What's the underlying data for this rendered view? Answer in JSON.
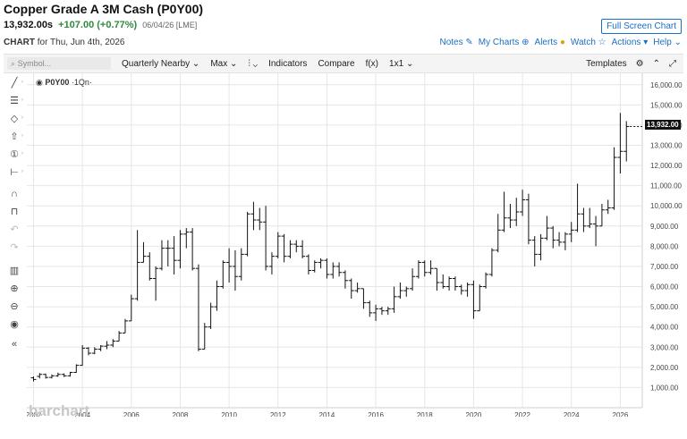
{
  "header": {
    "title": "Copper Grade A 3M Cash (P0Y00)",
    "last": "13,932.00s",
    "change": "+107.00 (+0.77%)",
    "meta": "06/04/26 [LME]",
    "fullscreen": "Full Screen Chart",
    "chart_label": "CHART",
    "chart_date": "for Thu, Jun 4th, 2026"
  },
  "top_links": {
    "notes": "Notes",
    "my_charts": "My Charts",
    "alerts": "Alerts",
    "watch": "Watch",
    "actions": "Actions",
    "help": "Help"
  },
  "toolbar": {
    "search_placeholder": "Symbol...",
    "period": "Quarterly Nearby",
    "range": "Max",
    "indicators": "Indicators",
    "compare": "Compare",
    "fx": "f(x)",
    "layout": "1x1",
    "templates": "Templates"
  },
  "symbol_label": {
    "symbol": "P0Y00",
    "interval": "·1Qn·"
  },
  "watermark": "barchart",
  "last_badge": "13,932.00",
  "colors": {
    "accent": "#1a6fc4",
    "up": "#2e8b3d",
    "bar": "#111111",
    "grid": "#e6e6e6"
  },
  "chart_data": {
    "type": "ohlc",
    "x_ticks": [
      "2002",
      "2004",
      "2006",
      "2008",
      "2010",
      "2012",
      "2014",
      "2016",
      "2018",
      "2020",
      "2022",
      "2024",
      "2026"
    ],
    "y_ticks": [
      "1,000.00",
      "2,000.00",
      "3,000.00",
      "4,000.00",
      "5,000.00",
      "6,000.00",
      "7,000.00",
      "8,000.00",
      "9,000.00",
      "10,000.00",
      "11,000.00",
      "12,000.00",
      "13,000.00",
      "14,000.00",
      "15,000.00",
      "16,000.00"
    ],
    "ylim": [
      0,
      16300
    ],
    "xlim": [
      2001.8,
      2026.9
    ],
    "bars": [
      [
        2002.0,
        1480,
        1550,
        1300,
        1400
      ],
      [
        2002.25,
        1550,
        1720,
        1450,
        1650
      ],
      [
        2002.5,
        1650,
        1690,
        1440,
        1500
      ],
      [
        2002.75,
        1500,
        1650,
        1450,
        1580
      ],
      [
        2003.0,
        1580,
        1740,
        1530,
        1650
      ],
      [
        2003.25,
        1650,
        1700,
        1520,
        1580
      ],
      [
        2003.5,
        1580,
        1780,
        1540,
        1750
      ],
      [
        2003.75,
        1750,
        2150,
        1730,
        2100
      ],
      [
        2004.0,
        2100,
        3100,
        2080,
        2950
      ],
      [
        2004.25,
        2950,
        3000,
        2600,
        2700
      ],
      [
        2004.5,
        2700,
        3000,
        2650,
        2900
      ],
      [
        2004.75,
        2900,
        3100,
        2800,
        3050
      ],
      [
        2005.0,
        3050,
        3300,
        2900,
        3100
      ],
      [
        2005.25,
        3100,
        3400,
        3000,
        3300
      ],
      [
        2005.5,
        3300,
        3800,
        3300,
        3700
      ],
      [
        2005.75,
        3700,
        4400,
        3700,
        4300
      ],
      [
        2006.0,
        4300,
        5600,
        4300,
        5400
      ],
      [
        2006.25,
        5400,
        8800,
        5300,
        7200
      ],
      [
        2006.5,
        7200,
        8200,
        7200,
        7500
      ],
      [
        2006.75,
        7500,
        7700,
        6300,
        6400
      ],
      [
        2007.0,
        6400,
        7000,
        5300,
        6900
      ],
      [
        2007.25,
        6900,
        8300,
        6800,
        7900
      ],
      [
        2007.5,
        7900,
        8300,
        7000,
        7900
      ],
      [
        2007.75,
        7900,
        8500,
        6600,
        7300
      ],
      [
        2008.0,
        7300,
        8800,
        6900,
        8600
      ],
      [
        2008.25,
        8600,
        8900,
        7900,
        8700
      ],
      [
        2008.5,
        8700,
        8900,
        6800,
        6900
      ],
      [
        2008.75,
        6900,
        7100,
        2800,
        2900
      ],
      [
        2009.0,
        2900,
        4200,
        2900,
        4000
      ],
      [
        2009.25,
        4000,
        5200,
        3900,
        5000
      ],
      [
        2009.5,
        5000,
        6300,
        4800,
        6000
      ],
      [
        2009.75,
        6000,
        7300,
        5900,
        7200
      ],
      [
        2010.0,
        7200,
        7900,
        6200,
        7000
      ],
      [
        2010.25,
        7000,
        7800,
        5800,
        6500
      ],
      [
        2010.5,
        6500,
        7900,
        6300,
        7600
      ],
      [
        2010.75,
        7600,
        9700,
        7500,
        9600
      ],
      [
        2011.0,
        9600,
        10200,
        8800,
        9300
      ],
      [
        2011.25,
        9300,
        9900,
        8800,
        9200
      ],
      [
        2011.5,
        9200,
        10000,
        6800,
        7000
      ],
      [
        2011.75,
        7000,
        7700,
        6600,
        7500
      ],
      [
        2012.0,
        7500,
        8700,
        7400,
        8500
      ],
      [
        2012.25,
        8500,
        8600,
        7200,
        7500
      ],
      [
        2012.5,
        7500,
        8300,
        7400,
        8100
      ],
      [
        2012.75,
        8100,
        8300,
        7700,
        8000
      ],
      [
        2013.0,
        8000,
        8300,
        7400,
        7500
      ],
      [
        2013.25,
        7500,
        7600,
        6600,
        6800
      ],
      [
        2013.5,
        6800,
        7300,
        6700,
        7200
      ],
      [
        2013.75,
        7200,
        7400,
        6900,
        7300
      ],
      [
        2014.0,
        7300,
        7400,
        6400,
        6600
      ],
      [
        2014.25,
        6600,
        7200,
        6400,
        7000
      ],
      [
        2014.5,
        7000,
        7200,
        6500,
        6700
      ],
      [
        2014.75,
        6700,
        6800,
        5900,
        6300
      ],
      [
        2015.0,
        6300,
        6400,
        5400,
        5800
      ],
      [
        2015.25,
        5800,
        6200,
        5700,
        5900
      ],
      [
        2015.5,
        5900,
        5900,
        4900,
        5200
      ],
      [
        2015.75,
        5200,
        5300,
        4500,
        4700
      ],
      [
        2016.0,
        4700,
        5100,
        4300,
        4900
      ],
      [
        2016.25,
        4900,
        5000,
        4600,
        4800
      ],
      [
        2016.5,
        4800,
        5000,
        4600,
        4900
      ],
      [
        2016.75,
        4900,
        6000,
        4700,
        5500
      ],
      [
        2017.0,
        5500,
        6200,
        5400,
        5800
      ],
      [
        2017.25,
        5800,
        6000,
        5500,
        5900
      ],
      [
        2017.5,
        5900,
        6900,
        5800,
        6500
      ],
      [
        2017.75,
        6500,
        7300,
        6400,
        7200
      ],
      [
        2018.0,
        7200,
        7300,
        6500,
        6700
      ],
      [
        2018.25,
        6700,
        7300,
        6600,
        6900
      ],
      [
        2018.5,
        6900,
        6900,
        5800,
        6200
      ],
      [
        2018.75,
        6200,
        6600,
        5900,
        6000
      ],
      [
        2019.0,
        6000,
        6500,
        5800,
        6400
      ],
      [
        2019.25,
        6400,
        6500,
        5800,
        6000
      ],
      [
        2019.5,
        6000,
        6100,
        5600,
        5800
      ],
      [
        2019.75,
        5800,
        6200,
        5500,
        6100
      ],
      [
        2020.0,
        6100,
        6300,
        4400,
        4800
      ],
      [
        2020.25,
        4800,
        6100,
        4800,
        6000
      ],
      [
        2020.5,
        6000,
        6700,
        5900,
        6600
      ],
      [
        2020.75,
        6600,
        7900,
        6500,
        7800
      ],
      [
        2021.0,
        7800,
        9600,
        7700,
        8800
      ],
      [
        2021.25,
        8800,
        10700,
        8700,
        9400
      ],
      [
        2021.5,
        9400,
        10100,
        8900,
        9300
      ],
      [
        2021.75,
        9300,
        10400,
        9000,
        9700
      ],
      [
        2022.0,
        9700,
        10800,
        9500,
        10300
      ],
      [
        2022.25,
        10300,
        10600,
        8100,
        8300
      ],
      [
        2022.5,
        8300,
        8500,
        7000,
        7600
      ],
      [
        2022.75,
        7600,
        8600,
        7300,
        8400
      ],
      [
        2023.0,
        8400,
        9500,
        8300,
        8900
      ],
      [
        2023.25,
        8900,
        9000,
        7900,
        8300
      ],
      [
        2023.5,
        8300,
        8700,
        8000,
        8200
      ],
      [
        2023.75,
        8200,
        8700,
        7800,
        8600
      ],
      [
        2024.0,
        8600,
        9200,
        8200,
        8800
      ],
      [
        2024.25,
        8800,
        11100,
        8700,
        9600
      ],
      [
        2024.5,
        9600,
        9900,
        8700,
        9000
      ],
      [
        2024.75,
        9000,
        9900,
        8900,
        9100
      ],
      [
        2025.0,
        9100,
        9500,
        8000,
        9000
      ],
      [
        2025.25,
        9000,
        10100,
        9000,
        9800
      ],
      [
        2025.5,
        9800,
        10300,
        9600,
        9900
      ],
      [
        2025.75,
        9900,
        12900,
        9800,
        12400
      ],
      [
        2026.0,
        12400,
        14600,
        11600,
        12700
      ],
      [
        2026.25,
        12700,
        14200,
        12200,
        13932
      ]
    ]
  }
}
